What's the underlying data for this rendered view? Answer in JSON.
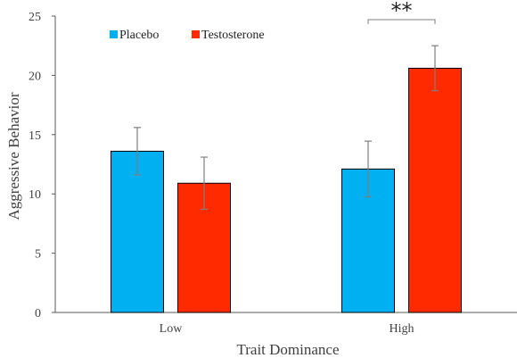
{
  "chart_data": {
    "type": "bar",
    "xlabel": "Trait Dominance",
    "ylabel": "Aggressive Behavior",
    "ylim": [
      0,
      25
    ],
    "yticks": [
      0,
      5,
      10,
      15,
      20,
      25
    ],
    "categories": [
      "Low",
      "High"
    ],
    "series": [
      {
        "name": "Placebo",
        "color": "#00b0f0",
        "values": [
          13.6,
          12.1
        ],
        "error": [
          2.0,
          2.35
        ]
      },
      {
        "name": "Testosterone",
        "color": "#ff2a00",
        "values": [
          10.9,
          20.6
        ],
        "error": [
          2.2,
          1.9
        ]
      }
    ],
    "legend_position": "top-left",
    "grid": false,
    "annotations": [
      {
        "text": "**",
        "category": "High",
        "spans_series": [
          "Placebo",
          "Testosterone"
        ]
      }
    ]
  }
}
